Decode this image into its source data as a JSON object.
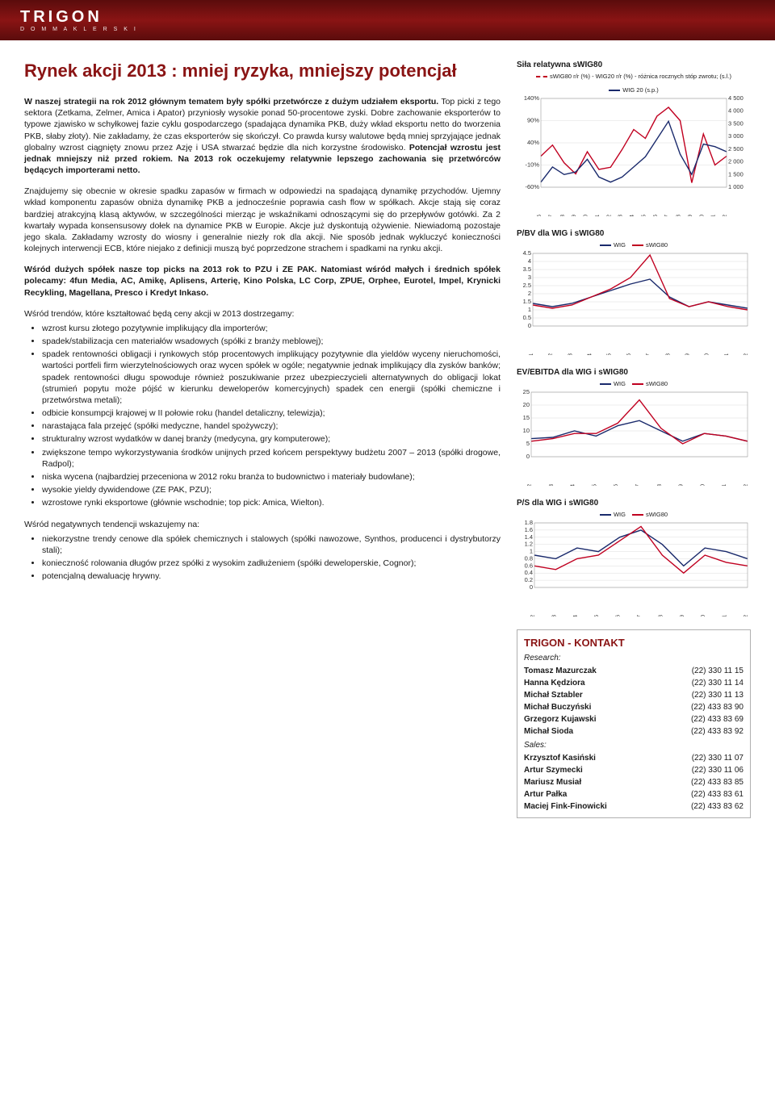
{
  "logo": {
    "main": "TRIGON",
    "sub": "D O M   M A K L E R S K I"
  },
  "title": "Rynek akcji 2013 : mniej ryzyka, mniejszy potencjał",
  "para1_pre": "W naszej strategii na rok 2012 głównym tematem były spółki przetwórcze z dużym udziałem eksportu.",
  "para1_mid": " Top picki z tego sektora (Zetkama, Zelmer, Amica i Apator) przyniosły wysokie ponad 50-procentowe zyski. Dobre zachowanie eksporterów to typowe zjawisko w schyłkowej fazie cyklu gospodarczego (spadająca dynamika PKB, duży wkład eksportu netto do tworzenia PKB, słaby złoty). Nie zakładamy, że czas eksporterów się skończył. Co prawda kursy walutowe będą mniej sprzyjające jednak globalny wzrost ciągnięty znowu przez Azję i USA stwarzać będzie dla nich korzystne środowisko. ",
  "para1_post": "Potencjał wzrostu jest jednak mniejszy niż przed rokiem. Na 2013 rok oczekujemy relatywnie lepszego zachowania się przetwórców będących importerami netto.",
  "para2": "Znajdujemy się obecnie w okresie spadku zapasów w firmach w odpowiedzi na spadającą dynamikę przychodów. Ujemny wkład komponentu zapasów obniża dynamikę PKB a jednocześnie poprawia cash flow w spółkach. Akcje stają się coraz bardziej atrakcyjną klasą aktywów, w szczególności mierząc je wskaźnikami odnoszącymi się do przepływów gotówki. Za 2 kwartały wypada konsensusowy dołek na dynamice PKB w Europie. Akcje już dyskontują ożywienie. Niewiadomą pozostaje jego skala. Zakładamy wzrosty do wiosny i generalnie niezły rok dla akcji. Nie sposób jednak wykluczyć konieczności kolejnych interwencji ECB, które niejako z definicji muszą być poprzedzone strachem i spadkami na rynku akcji.",
  "para3_pre": "Wśród dużych spółek nasze top picks na 2013 rok to PZU i ZE PAK.",
  "para3_post": " Natomiast wśród małych i średnich spółek polecamy: 4fun Media, AC, Amikę, Aplisens, Arterię, Kino Polska, LC Corp, ZPUE, Orphee, Eurotel, Impel, Krynicki Recykling, Magellana, Presco i Kredyt Inkaso.",
  "trends_intro": "Wśród trendów, które kształtować będą ceny akcji w 2013 dostrzegamy:",
  "trends": [
    "wzrost kursu złotego pozytywnie implikujący dla importerów;",
    "spadek/stabilizacja cen materiałów wsadowych (spółki z branży meblowej);",
    "spadek rentowności obligacji i rynkowych stóp procentowych implikujący pozytywnie dla yieldów wyceny nieruchomości, wartości portfeli firm wierzytelnościowych oraz wycen spółek w ogóle; negatywnie jednak implikujący dla zysków banków; spadek rentowności długu spowoduje również poszukiwanie przez ubezpieczycieli alternatywnych do obligacji lokat (strumień popytu może pójść w kierunku deweloperów komercyjnych) spadek cen energii (spółki chemiczne i przetwórstwa metali);",
    "odbicie konsumpcji krajowej w II połowie roku (handel detaliczny, telewizja);",
    "narastająca fala przejęć (spółki medyczne, handel spożywczy);",
    "strukturalny wzrost wydatków w danej branży (medycyna, gry komputerowe);",
    "zwiększone tempo wykorzystywania środków unijnych przed końcem perspektywy budżetu 2007 – 2013 (spółki drogowe, Radpol);",
    "niska wycena (najbardziej przeceniona w 2012 roku branża to budownictwo i materiały budowlane);",
    "wysokie yieldy dywidendowe (ZE PAK, PZU);",
    "wzrostowe rynki eksportowe (głównie wschodnie; top pick: Amica, Wielton)."
  ],
  "neg_intro": "Wśród negatywnych tendencji wskazujemy na:",
  "neg": [
    "niekorzystne trendy cenowe dla spółek chemicznych i stalowych (spółki nawozowe, Synthos, producenci i dystrybutorzy stali);",
    "konieczność rolowania długów przez spółki z wysokim zadłużeniem (spółki deweloperskie, Cognor);",
    "potencjalną dewaluację hrywny."
  ],
  "chart1": {
    "title": "Siła relatywna sWIG80",
    "legend1": "sWIG80 r/r (%) - WIG20 r/r (%) - różnica rocznych stóp zwrotu; (s.l.)",
    "legend2": "WIG 20 (s.p.)",
    "col_red": "#c00020",
    "col_navy": "#1a2a6c",
    "ylabels_left": [
      "-60%",
      "-10%",
      "40%",
      "90%",
      "140%"
    ],
    "ylabels_right": [
      "1 000",
      "1 500",
      "2 000",
      "2 500",
      "3 000",
      "3 500",
      "4 000",
      "4 500"
    ],
    "xticks": [
      "sty 96",
      "sty 97",
      "sty 98",
      "sty 99",
      "sty 00",
      "sty 01",
      "sty 02",
      "sty 03",
      "sty 04",
      "sty 05",
      "sty 06",
      "sty 07",
      "sty 08",
      "sty 09",
      "sty 10",
      "sty 11",
      "sty 12"
    ],
    "series_red": [
      10,
      35,
      -5,
      -30,
      20,
      -20,
      -15,
      25,
      70,
      50,
      100,
      120,
      90,
      -50,
      60,
      -10,
      10
    ],
    "series_navy": [
      1200,
      1800,
      1500,
      1600,
      2100,
      1400,
      1200,
      1400,
      1800,
      2200,
      2900,
      3600,
      2300,
      1500,
      2700,
      2600,
      2400
    ],
    "ylim_left": [
      -60,
      140
    ],
    "ylim_right": [
      1000,
      4500
    ]
  },
  "chart2": {
    "title": "P/BV dla WIG i sWIG80",
    "legend_wig": "WIG",
    "legend_swig": "sWIG80",
    "col_wig": "#1a2a6c",
    "col_swig": "#c00020",
    "yticks": [
      0,
      0.5,
      1,
      1.5,
      2,
      2.5,
      3,
      3.5,
      4,
      4.5
    ],
    "xticks": [
      "cze 01",
      "cze 02",
      "cze 03",
      "cze 04",
      "cze 05",
      "cze 06",
      "cze 07",
      "cze 08",
      "cze 09",
      "cze 10",
      "cze 11",
      "cze 12"
    ],
    "series_wig": [
      1.4,
      1.2,
      1.4,
      1.8,
      2.2,
      2.6,
      2.9,
      1.8,
      1.2,
      1.5,
      1.3,
      1.1
    ],
    "series_swig": [
      1.3,
      1.1,
      1.3,
      1.8,
      2.3,
      3.0,
      4.4,
      1.7,
      1.2,
      1.5,
      1.2,
      1.0
    ],
    "ylim": [
      0,
      4.5
    ]
  },
  "chart3": {
    "title": "EV/EBITDA dla WIG i sWIG80",
    "yticks": [
      0,
      5,
      10,
      15,
      20,
      25
    ],
    "xticks": [
      "mar 02",
      "mar 03",
      "mar 04",
      "mar 05",
      "mar 06",
      "mar 07",
      "mar 08",
      "mar 09",
      "mar 10",
      "mar 11",
      "mar 12"
    ],
    "series_wig": [
      7,
      7.5,
      10,
      8,
      12,
      14,
      10,
      6,
      9,
      8,
      6
    ],
    "series_swig": [
      6,
      7,
      9,
      9,
      13,
      22,
      11,
      5,
      9,
      8,
      6
    ],
    "ylim": [
      0,
      25
    ]
  },
  "chart4": {
    "title": "P/S dla WIG i sWIG80",
    "yticks": [
      0,
      0.2,
      0.4,
      0.6,
      0.8,
      1,
      1.2,
      1.4,
      1.6,
      1.8
    ],
    "xticks": [
      "mar 02",
      "mar 03",
      "mar 04",
      "mar 05",
      "mar 06",
      "mar 07",
      "mar 08",
      "mar 09",
      "mar 10",
      "mar 11",
      "mar 12"
    ],
    "series_wig": [
      0.9,
      0.8,
      1.1,
      1.0,
      1.4,
      1.6,
      1.2,
      0.6,
      1.1,
      1.0,
      0.8
    ],
    "series_swig": [
      0.6,
      0.5,
      0.8,
      0.9,
      1.3,
      1.7,
      0.9,
      0.4,
      0.9,
      0.7,
      0.6
    ],
    "ylim": [
      0,
      1.8
    ]
  },
  "contact": {
    "title": "TRIGON - KONTAKT",
    "research_label": "Research:",
    "sales_label": "Sales:",
    "research": [
      {
        "name": "Tomasz Mazurczak",
        "phone": "(22) 330 11 15"
      },
      {
        "name": "Hanna Kędziora",
        "phone": "(22) 330 11 14"
      },
      {
        "name": "Michał Sztabler",
        "phone": "(22) 330 11 13"
      },
      {
        "name": "Michał Buczyński",
        "phone": "(22) 433 83 90"
      },
      {
        "name": "Grzegorz Kujawski",
        "phone": "(22) 433 83 69"
      },
      {
        "name": "Michał Sioda",
        "phone": "(22) 433 83 92"
      }
    ],
    "sales": [
      {
        "name": "Krzysztof Kasiński",
        "phone": "(22) 330 11 07"
      },
      {
        "name": "Artur Szymecki",
        "phone": "(22) 330 11 06"
      },
      {
        "name": "Mariusz Musiał",
        "phone": "(22) 433 83 85"
      },
      {
        "name": "Artur Pałka",
        "phone": "(22) 433 83 61"
      },
      {
        "name": "Maciej Fink-Finowicki",
        "phone": "(22) 433 83 62"
      }
    ]
  }
}
